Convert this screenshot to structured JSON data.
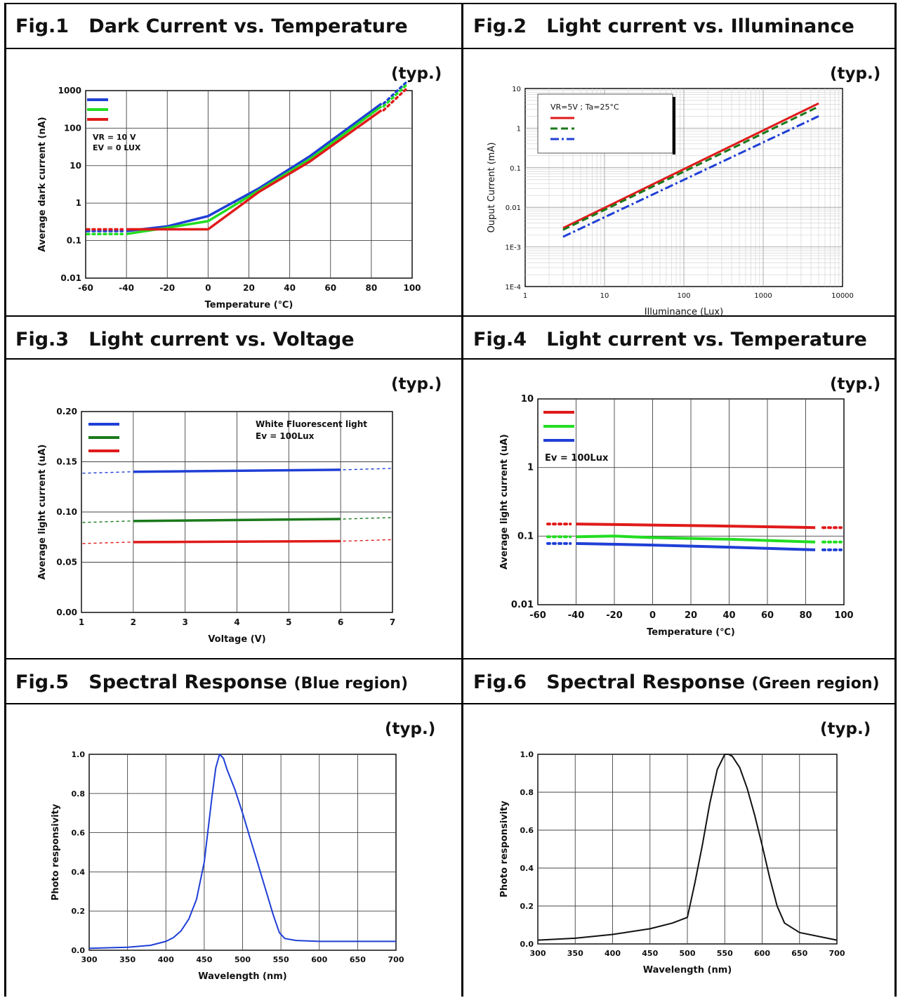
{
  "figures": [
    {
      "num": "Fig.1",
      "title": "Dark Current vs. Temperature",
      "sub": "",
      "typ": "(typ.)"
    },
    {
      "num": "Fig.2",
      "title": "Light current vs. Illuminance",
      "sub": "",
      "typ": "(typ.)"
    },
    {
      "num": "Fig.3",
      "title": "Light current vs. Voltage",
      "sub": "",
      "typ": "(typ.)"
    },
    {
      "num": "Fig.4",
      "title": "Light current vs. Temperature",
      "sub": "",
      "typ": "(typ.)"
    },
    {
      "num": "Fig.5",
      "title": "Spectral Response",
      "sub": "(Blue region)",
      "typ": "(typ.)"
    },
    {
      "num": "Fig.6",
      "title": "Spectral Response",
      "sub": "(Green region)",
      "typ": "(typ.)"
    }
  ],
  "colors": {
    "blue": "#1f3fd6",
    "green": "#22dd22",
    "red": "#e01a1a",
    "darkgreen": "#1a7a1a",
    "black": "#111111"
  },
  "chart_data": [
    {
      "type": "line",
      "title": "Dark Current vs. Temperature",
      "xlabel": "Temperature (℃)",
      "ylabel": "Average dark current (nA)",
      "xlim": [
        -60,
        100
      ],
      "ylim": [
        0.01,
        1000
      ],
      "yscale": "log",
      "xticks": [
        "-60",
        "-40",
        "-20",
        "0",
        "20",
        "40",
        "60",
        "80",
        "100"
      ],
      "yticks": [
        "0.01",
        "0.1",
        "1",
        "10",
        "100",
        "1000"
      ],
      "annotations": [
        "VR = 10 V",
        "EV = 0 LUX"
      ],
      "series": [
        {
          "color": "blue",
          "x": [
            -40,
            -20,
            0,
            25,
            50,
            85
          ],
          "y": [
            0.18,
            0.24,
            0.45,
            2.5,
            18,
            450
          ]
        },
        {
          "color": "green",
          "x": [
            -40,
            -20,
            0,
            25,
            50,
            85
          ],
          "y": [
            0.15,
            0.22,
            0.33,
            2.2,
            15,
            380
          ]
        },
        {
          "color": "red",
          "x": [
            -40,
            -20,
            0,
            25,
            50,
            85
          ],
          "y": [
            0.2,
            0.2,
            0.2,
            2.0,
            13,
            300
          ]
        }
      ]
    },
    {
      "type": "line",
      "title": "Light current vs. Illuminance",
      "xlabel": "Illuminance (Lux)",
      "ylabel": "Ouput Current (mA)",
      "xlim": [
        1,
        10000
      ],
      "ylim": [
        0.0001,
        10
      ],
      "xscale": "log",
      "yscale": "log",
      "xticks": [
        "1",
        "10",
        "100",
        "1000",
        "10000"
      ],
      "yticks": [
        "1E-4",
        "1E-3",
        "0.01",
        "0.1",
        "1",
        "10"
      ],
      "legend_title": "VR=5V ; Ta=25°C",
      "series": [
        {
          "color": "red",
          "style": "solid",
          "x": [
            3,
            5000
          ],
          "y": [
            0.003,
            4.2
          ]
        },
        {
          "color": "darkgreen",
          "style": "dashed",
          "x": [
            3,
            5000
          ],
          "y": [
            0.0027,
            3.5
          ]
        },
        {
          "color": "blue",
          "style": "dashdot",
          "x": [
            3,
            5000
          ],
          "y": [
            0.0018,
            2.0
          ]
        }
      ]
    },
    {
      "type": "line",
      "title": "Light current vs. Voltage",
      "xlabel": "Voltage (V)",
      "ylabel": "Average light current (uA)",
      "xlim": [
        1,
        7
      ],
      "ylim": [
        0,
        0.2
      ],
      "xticks": [
        "1",
        "2",
        "3",
        "4",
        "5",
        "6",
        "7"
      ],
      "yticks": [
        "0.00",
        "0.05",
        "0.10",
        "0.15",
        "0.20"
      ],
      "annotations": [
        "White Fluorescent light",
        "Ev = 100Lux"
      ],
      "series": [
        {
          "color": "blue",
          "x": [
            2,
            6
          ],
          "y": [
            0.14,
            0.142
          ]
        },
        {
          "color": "darkgreen",
          "x": [
            2,
            6
          ],
          "y": [
            0.091,
            0.093
          ]
        },
        {
          "color": "red",
          "x": [
            2,
            6
          ],
          "y": [
            0.07,
            0.071
          ]
        }
      ]
    },
    {
      "type": "line",
      "title": "Light current vs. Temperature",
      "xlabel": "Temperature (℃)",
      "ylabel": "Average light current (uA)",
      "xlim": [
        -60,
        100
      ],
      "ylim": [
        0.01,
        10
      ],
      "yscale": "log",
      "xticks": [
        "-60",
        "-40",
        "-20",
        "0",
        "20",
        "40",
        "60",
        "80",
        "100"
      ],
      "yticks": [
        "0.01",
        "0.1",
        "1",
        "10"
      ],
      "annotations": [
        "Ev = 100Lux"
      ],
      "series": [
        {
          "color": "red",
          "x": [
            -40,
            0,
            40,
            85
          ],
          "y": [
            0.15,
            0.145,
            0.14,
            0.133
          ]
        },
        {
          "color": "green",
          "x": [
            -40,
            -20,
            0,
            40,
            85
          ],
          "y": [
            0.098,
            0.1,
            0.095,
            0.09,
            0.082
          ]
        },
        {
          "color": "blue",
          "x": [
            -40,
            0,
            40,
            85
          ],
          "y": [
            0.078,
            0.074,
            0.069,
            0.063
          ]
        }
      ]
    },
    {
      "type": "line",
      "title": "Spectral Response (Blue region)",
      "xlabel": "Wavelength (nm)",
      "ylabel": "Photo responsivity",
      "xlim": [
        300,
        700
      ],
      "ylim": [
        0,
        1.0
      ],
      "xticks": [
        "300",
        "350",
        "400",
        "450",
        "500",
        "550",
        "600",
        "650",
        "700"
      ],
      "yticks": [
        "0.0",
        "0.2",
        "0.4",
        "0.6",
        "0.8",
        "1.0"
      ],
      "series": [
        {
          "color": "blue",
          "x": [
            300,
            350,
            380,
            400,
            410,
            420,
            430,
            440,
            450,
            460,
            465,
            470,
            475,
            480,
            490,
            500,
            510,
            520,
            530,
            540,
            548,
            555,
            570,
            600,
            650,
            700
          ],
          "y": [
            0.01,
            0.015,
            0.025,
            0.045,
            0.065,
            0.1,
            0.16,
            0.26,
            0.45,
            0.78,
            0.93,
            1.0,
            0.98,
            0.92,
            0.82,
            0.7,
            0.57,
            0.44,
            0.31,
            0.18,
            0.09,
            0.06,
            0.05,
            0.045,
            0.045,
            0.045
          ]
        }
      ]
    },
    {
      "type": "line",
      "title": "Spectral Response (Green region)",
      "xlabel": "Wavelength (nm)",
      "ylabel": "Photo responsivity",
      "xlim": [
        300,
        700
      ],
      "ylim": [
        0,
        1.0
      ],
      "xticks": [
        "300",
        "350",
        "400",
        "450",
        "500",
        "550",
        "600",
        "650",
        "700"
      ],
      "yticks": [
        "0.0",
        "0.2",
        "0.4",
        "0.6",
        "0.8",
        "1.0"
      ],
      "series": [
        {
          "color": "black",
          "x": [
            300,
            350,
            400,
            450,
            480,
            500,
            510,
            520,
            530,
            540,
            550,
            555,
            560,
            570,
            580,
            590,
            600,
            610,
            620,
            630,
            650,
            700
          ],
          "y": [
            0.02,
            0.03,
            0.05,
            0.08,
            0.11,
            0.14,
            0.32,
            0.52,
            0.74,
            0.92,
            1.0,
            1.0,
            0.99,
            0.93,
            0.82,
            0.68,
            0.52,
            0.35,
            0.2,
            0.11,
            0.06,
            0.02
          ]
        }
      ]
    }
  ]
}
